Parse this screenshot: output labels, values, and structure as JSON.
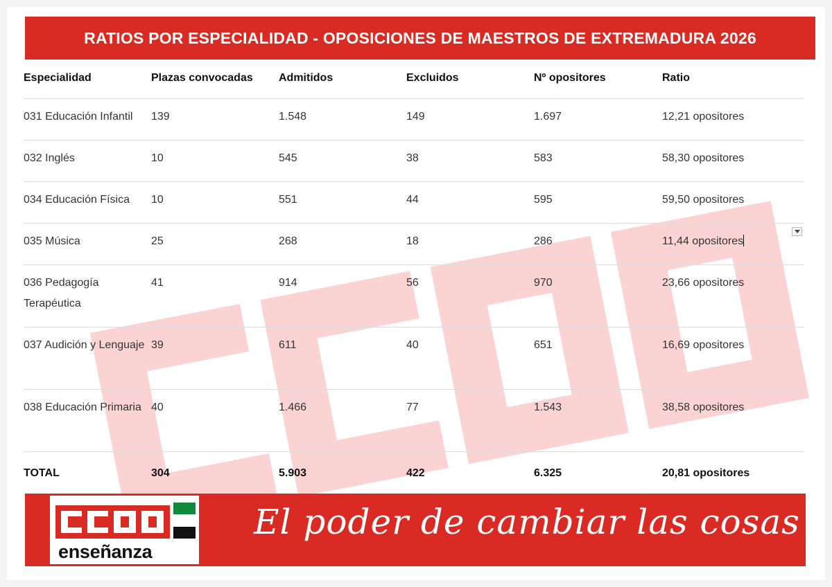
{
  "title": "RATIOS POR ESPECIALIDAD - OPOSICIONES DE MAESTROS DE EXTREMADURA 2026",
  "table": {
    "headers": [
      "Especialidad",
      "Plazas convocadas",
      "Admitidos",
      "Excluidos",
      "Nº opositores",
      "Ratio"
    ],
    "rows": [
      [
        "031 Educación Infantil",
        "139",
        "1.548",
        "149",
        "1.697",
        "12,21 opositores"
      ],
      [
        "032 Inglés",
        "10",
        "545",
        "38",
        "583",
        "58,30 opositores"
      ],
      [
        "034 Educación Física",
        "10",
        "551",
        "44",
        "595",
        "59,50 opositores"
      ],
      [
        "035 Música",
        "25",
        "268",
        "18",
        "286",
        "11,44 opositores"
      ],
      [
        "036 Pedagogía Terapéutica",
        "41",
        "914",
        "56",
        "970",
        "23,66 opositores"
      ],
      [
        "037 Audición y Lenguaje",
        "39",
        "611",
        "40",
        "651",
        "16,69 opositores"
      ],
      [
        "038 Educación Primaria",
        "40",
        "1.466",
        "77",
        "1.543",
        "38,58 opositores"
      ]
    ],
    "total": [
      "TOTAL",
      "304",
      "5.903",
      "422",
      "6.325",
      "20,81 opositores"
    ]
  },
  "watermark": "CCOO",
  "footer": {
    "logo_text": "CCOO",
    "logo_sub": "enseñanza",
    "slogan": "El poder de cambiar las cosas"
  },
  "colors": {
    "brand_red": "#d92b23",
    "watermark_pink": "#fbd3d3",
    "flag_green": "#0f8a3c",
    "flag_white": "#ffffff",
    "flag_black": "#111111"
  },
  "icons": [
    "dropdown-arrow-icon",
    "extremadura-flag-icon"
  ]
}
